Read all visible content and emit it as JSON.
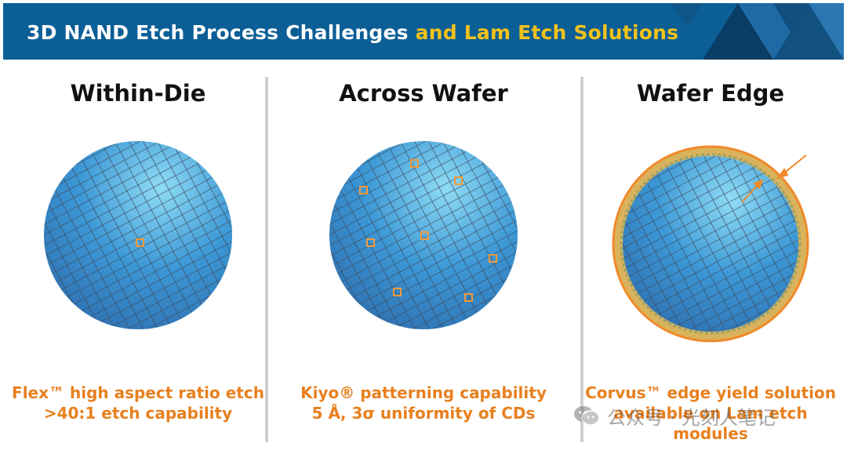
{
  "header": {
    "title_part1": "3D NAND Etch Process Challenges ",
    "title_part2": "and Lam Etch Solutions"
  },
  "columns": [
    {
      "title": "Within-Die",
      "caption_lines": [
        "Flex™ high aspect ratio etch",
        ">40:1 etch capability"
      ]
    },
    {
      "title": "Across Wafer",
      "caption_lines": [
        "Kiyo® patterning capability",
        "5 Å, 3σ uniformity of CDs"
      ]
    },
    {
      "title": "Wafer Edge",
      "caption_lines": [
        "Corvus™ edge yield solution",
        "available on Lam etch",
        "modules"
      ]
    }
  ],
  "watermark": {
    "text": "公众号 · 光刻人笔记"
  },
  "colors": {
    "header_bg": "#0b5e96",
    "highlight": "#f3c21a",
    "accent": "#e8801e",
    "wafer": "#3a8fcf"
  }
}
